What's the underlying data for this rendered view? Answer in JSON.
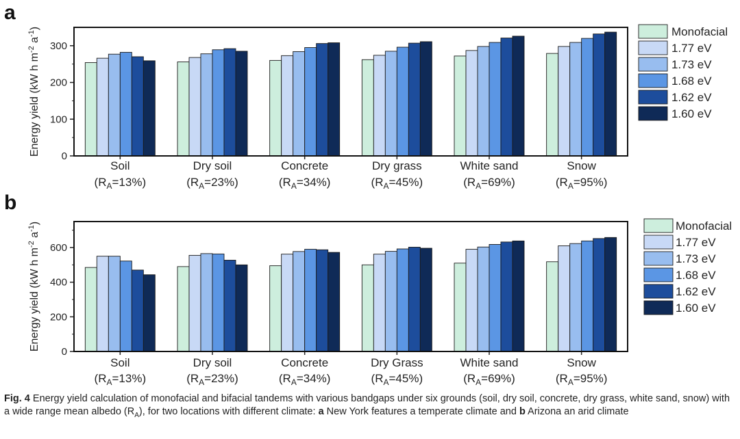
{
  "chart_data": [
    {
      "type": "bar",
      "panel": "a",
      "title": "",
      "xlabel": "",
      "ylabel": "Energy yield (kW h m-2 a-1)",
      "ylim": [
        0,
        350
      ],
      "yticks": [
        0,
        100,
        200,
        300
      ],
      "categories": [
        {
          "name": "Soil",
          "albedo": "=13%"
        },
        {
          "name": "Dry soil",
          "albedo": "=23%"
        },
        {
          "name": "Concrete",
          "albedo": "=34%"
        },
        {
          "name": "Dry grass",
          "albedo": "=45%"
        },
        {
          "name": "White sand",
          "albedo": "=69%"
        },
        {
          "name": "Snow",
          "albedo": "=95%"
        }
      ],
      "series": [
        {
          "name": "Monofacial",
          "color": "#cdeedd",
          "values": [
            254,
            256,
            260,
            262,
            272,
            279
          ]
        },
        {
          "name": "1.77 eV",
          "color": "#c8d9f6",
          "values": [
            266,
            268,
            273,
            274,
            287,
            298
          ]
        },
        {
          "name": "1.73 eV",
          "color": "#98bdef",
          "values": [
            277,
            278,
            284,
            285,
            298,
            309
          ]
        },
        {
          "name": "1.68 eV",
          "color": "#5b96e4",
          "values": [
            282,
            289,
            295,
            296,
            309,
            320
          ]
        },
        {
          "name": "1.62 eV",
          "color": "#1d4d9c",
          "values": [
            270,
            292,
            306,
            307,
            321,
            332
          ]
        },
        {
          "name": "1.60 eV",
          "color": "#0f2a57",
          "values": [
            259,
            285,
            308,
            311,
            326,
            337
          ]
        }
      ]
    },
    {
      "type": "bar",
      "panel": "b",
      "title": "",
      "xlabel": "",
      "ylabel": "Energy yield (kW h m-2 a-1)",
      "ylim": [
        0,
        750
      ],
      "yticks": [
        0,
        200,
        400,
        600
      ],
      "categories": [
        {
          "name": "Soil",
          "albedo": "=13%"
        },
        {
          "name": "Dry soil",
          "albedo": "=23%"
        },
        {
          "name": "Concrete",
          "albedo": "=34%"
        },
        {
          "name": "Dry Grass",
          "albedo": "=45%"
        },
        {
          "name": "White sand",
          "albedo": "=69%"
        },
        {
          "name": "Snow",
          "albedo": "=95%"
        }
      ],
      "series": [
        {
          "name": "Monofacial",
          "color": "#cdeedd",
          "values": [
            485,
            490,
            495,
            500,
            510,
            518
          ]
        },
        {
          "name": "1.77 eV",
          "color": "#c8d9f6",
          "values": [
            550,
            555,
            562,
            562,
            590,
            610
          ]
        },
        {
          "name": "1.73 eV",
          "color": "#98bdef",
          "values": [
            550,
            565,
            577,
            578,
            603,
            623
          ]
        },
        {
          "name": "1.68 eV",
          "color": "#5b96e4",
          "values": [
            522,
            563,
            590,
            592,
            618,
            638
          ]
        },
        {
          "name": "1.62 eV",
          "color": "#1d4d9c",
          "values": [
            470,
            527,
            587,
            602,
            632,
            652
          ]
        },
        {
          "name": "1.60 eV",
          "color": "#0f2a57",
          "values": [
            443,
            500,
            572,
            596,
            638,
            658
          ]
        }
      ]
    }
  ],
  "axis": {
    "ylabel_main": "Energy yield (kW h m",
    "ylabel_exp1": "-2",
    "ylabel_mid": " a",
    "ylabel_exp2": "-1",
    "ylabel_end": ")",
    "albedo_prefix": "(R",
    "albedo_sub": "A",
    "albedo_suffix": ")"
  },
  "caption": {
    "label": "Fig. 4",
    "text1": " Energy yield calculation of monofacial and bifacial tandems with various bandgaps under six grounds (soil, dry soil, concrete, dry grass, white sand, snow) with a wide range mean albedo (R",
    "sub": "A",
    "text2": "), for two locations with different climate: ",
    "bold_a": "a",
    "text3": " New York features a temperate climate and ",
    "bold_b": "b",
    "text4": " Arizona an arid climate"
  }
}
